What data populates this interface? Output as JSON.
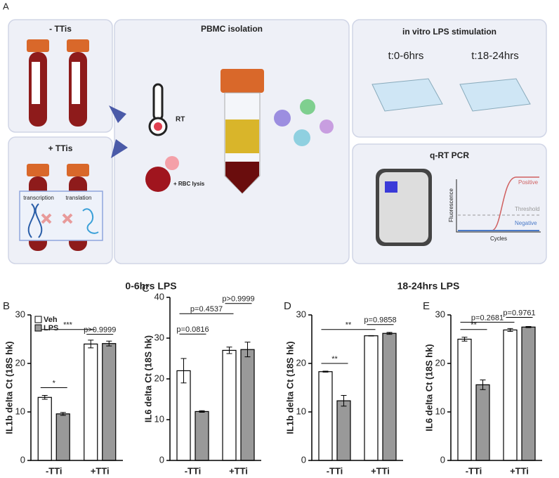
{
  "schematic": {
    "label": "A",
    "minus_ttis": "-  TTis",
    "plus_ttis": "+ TTis",
    "pbmc": "PBMC isolation",
    "rt": "RT",
    "rbc": "+ RBC lysis",
    "transcription": "transcription",
    "translation": "translation",
    "lps": "in vitro LPS stimulation",
    "t1": "t:0-6hrs",
    "t2": "t:18-24hrs",
    "pcr": "q-RT PCR",
    "positive": "Positive",
    "threshold": "Threshold",
    "negative": "Negative",
    "fluorescence": "Fluorescence",
    "cycles": "Cycles"
  },
  "group_titles": [
    "0-6hrs LPS",
    "18-24hrs LPS"
  ],
  "chart_data": [
    {
      "type": "bar",
      "panel": "B",
      "ylabel": "IL1b delta Ct (18S hk)",
      "categories": [
        "-TTi",
        "+TTi"
      ],
      "series": [
        {
          "name": "Veh",
          "color": "#ffffff",
          "values": [
            13,
            24
          ],
          "errors": [
            0.4,
            0.8
          ]
        },
        {
          "name": "LPS",
          "color": "#999999",
          "values": [
            9.6,
            24.1
          ],
          "errors": [
            0.3,
            0.5
          ]
        }
      ],
      "ylim": [
        0,
        30
      ],
      "yticks": [
        0,
        10,
        20,
        30
      ],
      "legend": "upper left",
      "annotations": [
        {
          "text": "*"
        },
        {
          "text": "***"
        },
        {
          "text": "p>0.9999"
        }
      ]
    },
    {
      "type": "bar",
      "panel": "C",
      "ylabel": "IL6 delta Ct (18S hk)",
      "categories": [
        "-TTi",
        "+TTi"
      ],
      "series": [
        {
          "color": "#ffffff",
          "values": [
            22,
            27
          ],
          "errors": [
            3,
            0.8
          ]
        },
        {
          "color": "#999999",
          "values": [
            12,
            27.2
          ],
          "errors": [
            0.2,
            1.8
          ]
        }
      ],
      "ylim": [
        0,
        40
      ],
      "yticks": [
        0,
        10,
        20,
        30,
        40
      ],
      "annotations": [
        {
          "text": "p=0.0816"
        },
        {
          "text": "p=0.4537"
        },
        {
          "text": "p>0.9999"
        }
      ]
    },
    {
      "type": "bar",
      "panel": "D",
      "ylabel": "IL1b delta Ct (18S hk)",
      "categories": [
        "-TTi",
        "+TTi"
      ],
      "series": [
        {
          "color": "#ffffff",
          "values": [
            18.3,
            25.7
          ],
          "errors": [
            0.1,
            0.05
          ]
        },
        {
          "color": "#999999",
          "values": [
            12.3,
            26.2
          ],
          "errors": [
            1.1,
            0.2
          ]
        }
      ],
      "ylim": [
        0,
        30
      ],
      "yticks": [
        0,
        10,
        20,
        30
      ],
      "annotations": [
        {
          "text": "**"
        },
        {
          "text": "**"
        },
        {
          "text": "p=0.9858"
        }
      ]
    },
    {
      "type": "bar",
      "panel": "E",
      "ylabel": "IL6 delta Ct (18S hk)",
      "categories": [
        "-TTi",
        "+TTi"
      ],
      "series": [
        {
          "color": "#ffffff",
          "values": [
            25,
            26.9
          ],
          "errors": [
            0.4,
            0.3
          ]
        },
        {
          "color": "#999999",
          "values": [
            15.6,
            27.5
          ],
          "errors": [
            1,
            0.1
          ]
        }
      ],
      "ylim": [
        0,
        30
      ],
      "yticks": [
        0,
        10,
        20,
        30
      ],
      "annotations": [
        {
          "text": "**"
        },
        {
          "text": "p=0.2681"
        },
        {
          "text": "p=0.9761"
        }
      ]
    }
  ]
}
